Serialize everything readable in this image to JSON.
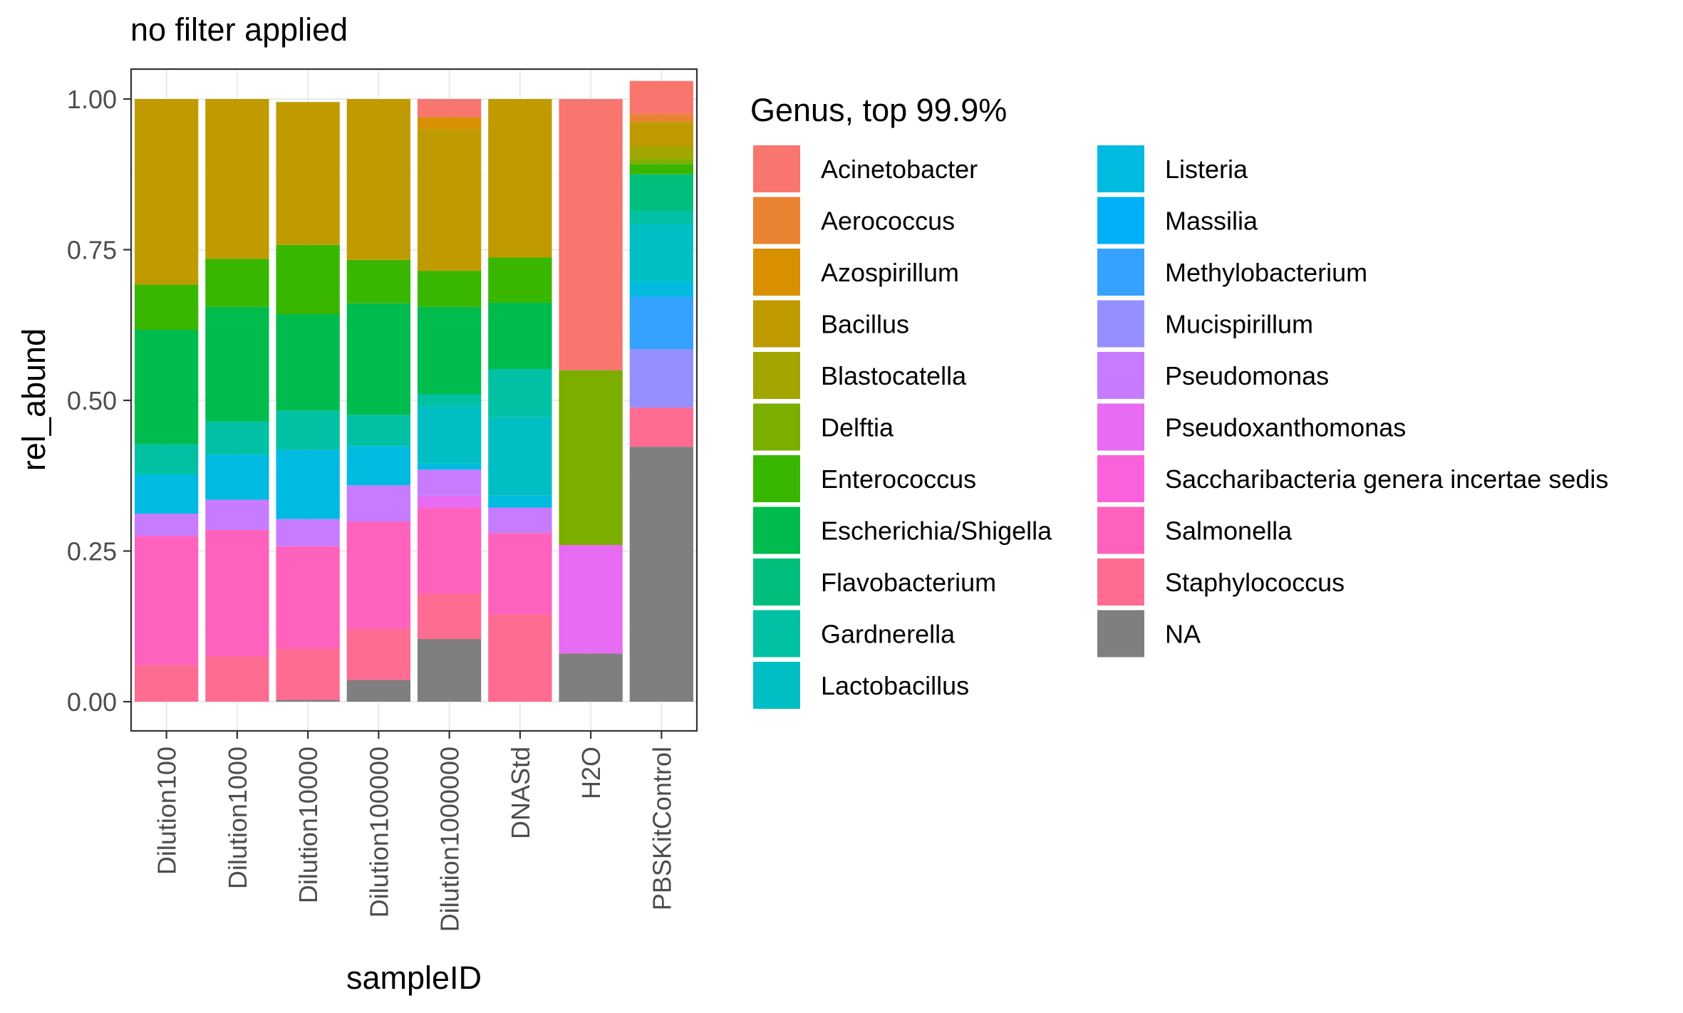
{
  "chart_data": {
    "type": "bar",
    "stacked": true,
    "title": "no filter applied",
    "xlabel": "sampleID",
    "ylabel": "rel_abund",
    "ylim": [
      0,
      1.05
    ],
    "yticks": [
      0,
      0.25,
      0.5,
      0.75,
      1.0
    ],
    "ytick_labels": [
      "0.00",
      "0.25",
      "0.50",
      "0.75",
      "1.00"
    ],
    "grid": true,
    "legend_position": "right",
    "legend_title": "Genus, top 99.9%",
    "categories": [
      "Dilution100",
      "Dilution1000",
      "Dilution10000",
      "Dilution100000",
      "Dilution1000000",
      "DNAStd",
      "H2O",
      "PBSKitControl"
    ],
    "series": [
      {
        "name": "Acinetobacter",
        "color": "#F8766D",
        "values": [
          0,
          0,
          0,
          0,
          0.03,
          0,
          0.45,
          0.055
        ]
      },
      {
        "name": "Aerococcus",
        "color": "#EA8331",
        "values": [
          0,
          0,
          0,
          0,
          0,
          0,
          0,
          0.013
        ]
      },
      {
        "name": "Azospirillum",
        "color": "#D89000",
        "values": [
          0,
          0,
          0,
          0,
          0.02,
          0,
          0,
          0
        ]
      },
      {
        "name": "Bacillus",
        "color": "#C09B00",
        "values": [
          0.308,
          0.265,
          0.237,
          0.267,
          0.235,
          0.263,
          0,
          0.04
        ]
      },
      {
        "name": "Blastocatella",
        "color": "#A3A500",
        "values": [
          0,
          0,
          0,
          0,
          0,
          0,
          0,
          0.022
        ]
      },
      {
        "name": "Delftia",
        "color": "#7CAE00",
        "values": [
          0,
          0,
          0,
          0,
          0,
          0,
          0.29,
          0.008
        ]
      },
      {
        "name": "Enterococcus",
        "color": "#39B600",
        "values": [
          0.075,
          0.08,
          0.115,
          0.072,
          0.06,
          0.075,
          0,
          0.017
        ]
      },
      {
        "name": "Escherichia/Shigella",
        "color": "#00BB4E",
        "values": [
          0.19,
          0.19,
          0.16,
          0.185,
          0.145,
          0.11,
          0,
          0
        ]
      },
      {
        "name": "Flavobacterium",
        "color": "#00BF7D",
        "values": [
          0,
          0,
          0,
          0,
          0,
          0,
          0,
          0.06
        ]
      },
      {
        "name": "Gardnerella",
        "color": "#00C1A3",
        "values": [
          0.05,
          0.055,
          0.065,
          0.052,
          0.02,
          0.08,
          0,
          0.023
        ]
      },
      {
        "name": "Lactobacillus",
        "color": "#00BFC4",
        "values": [
          0,
          0,
          0,
          0,
          0.095,
          0.13,
          0,
          0.095
        ]
      },
      {
        "name": "Listeria",
        "color": "#00BAE0",
        "values": [
          0.065,
          0.075,
          0.115,
          0.065,
          0.01,
          0.02,
          0,
          0.025
        ]
      },
      {
        "name": "Massilia",
        "color": "#00B0F6",
        "values": [
          0,
          0,
          0,
          0,
          0,
          0,
          0,
          0
        ]
      },
      {
        "name": "Methylobacterium",
        "color": "#35A2FF",
        "values": [
          0,
          0,
          0,
          0,
          0,
          0,
          0,
          0.087
        ]
      },
      {
        "name": "Mucispirillum",
        "color": "#9590FF",
        "values": [
          0,
          0,
          0,
          0,
          0,
          0,
          0,
          0.097
        ]
      },
      {
        "name": "Pseudomonas",
        "color": "#C77CFF",
        "values": [
          0.037,
          0.05,
          0.045,
          0.06,
          0.043,
          0.042,
          0,
          0
        ]
      },
      {
        "name": "Pseudoxanthomonas",
        "color": "#E76BF3",
        "values": [
          0,
          0,
          0,
          0,
          0.02,
          0,
          0.18,
          0
        ]
      },
      {
        "name": "Saccharibacteria genera incertae sedis",
        "color": "#FA62DB",
        "values": [
          0,
          0,
          0,
          0,
          0,
          0,
          0,
          0
        ]
      },
      {
        "name": "Salmonella",
        "color": "#FF62BC",
        "values": [
          0.215,
          0.21,
          0.17,
          0.178,
          0.143,
          0.135,
          0,
          0
        ]
      },
      {
        "name": "Staphylococcus",
        "color": "#FF6C91",
        "values": [
          0.06,
          0.075,
          0.085,
          0.085,
          0.075,
          0.145,
          0,
          0.065
        ]
      },
      {
        "name": "NA",
        "color": "#7F7F7F",
        "values": [
          0,
          0,
          0.003,
          0.036,
          0.104,
          0,
          0.08,
          0.423
        ]
      }
    ]
  }
}
